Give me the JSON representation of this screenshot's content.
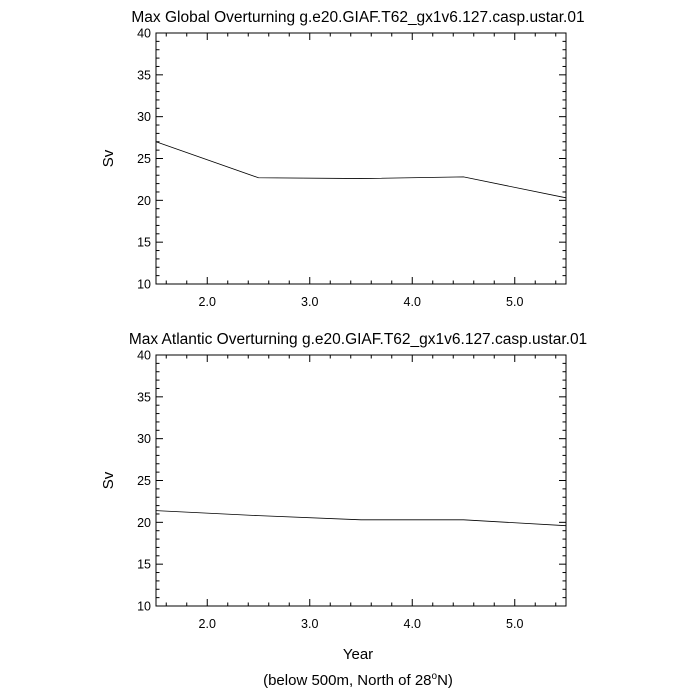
{
  "chart_data": [
    {
      "type": "line",
      "title": "Max Global Overturning g.e20.GIAF.T62_gx1v6.127.casp.ustar.01",
      "xlabel": "",
      "ylabel": "Sv",
      "xlim": [
        1.5,
        5.5
      ],
      "ylim": [
        10,
        40
      ],
      "x_ticks": [
        "2.0",
        "3.0",
        "4.0",
        "5.0"
      ],
      "y_ticks": [
        "10",
        "15",
        "20",
        "25",
        "30",
        "35",
        "40"
      ],
      "grid": false,
      "series": [
        {
          "x": [
            1.5,
            2.5,
            3.5,
            4.5,
            5.5
          ],
          "values": [
            27.0,
            22.7,
            22.6,
            22.8,
            20.3
          ]
        }
      ]
    },
    {
      "type": "line",
      "title": "Max Atlantic Overturning g.e20.GIAF.T62_gx1v6.127.casp.ustar.01",
      "xlabel": "Year",
      "ylabel": "Sv",
      "xlim": [
        1.5,
        5.5
      ],
      "ylim": [
        10,
        40
      ],
      "x_ticks": [
        "2.0",
        "3.0",
        "4.0",
        "5.0"
      ],
      "y_ticks": [
        "10",
        "15",
        "20",
        "25",
        "30",
        "35",
        "40"
      ],
      "grid": false,
      "series": [
        {
          "x": [
            1.5,
            2.5,
            3.5,
            4.5,
            5.5
          ],
          "values": [
            21.4,
            20.8,
            20.3,
            20.3,
            19.6
          ]
        }
      ]
    }
  ],
  "footnote": {
    "prefix": "(below 500m, North of 28",
    "superscript": "o",
    "suffix": "N)"
  }
}
